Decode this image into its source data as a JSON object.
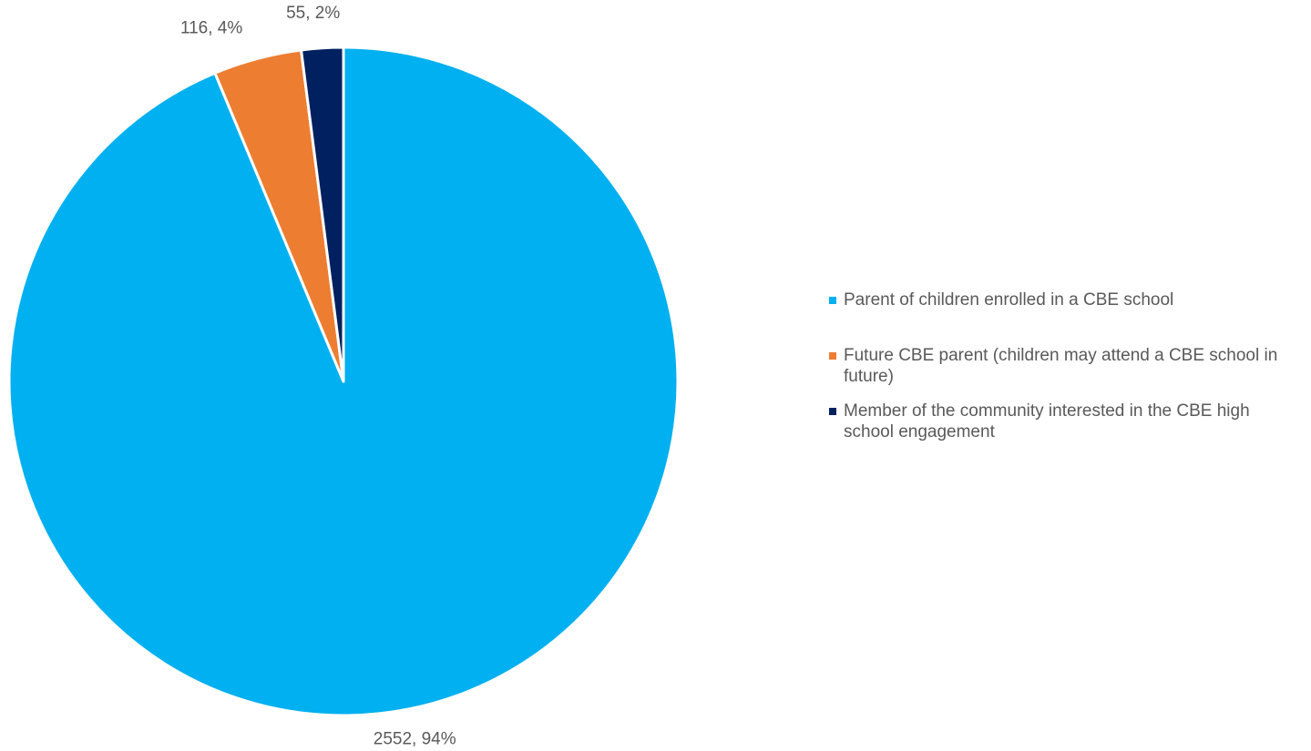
{
  "chart_data": {
    "type": "pie",
    "title": "",
    "slices": [
      {
        "label": "Parent of children enrolled in a CBE school",
        "value": 2552,
        "percent": 94,
        "data_label": "2552, 94%",
        "color": "#00B0F0"
      },
      {
        "label": "Future CBE parent (children may attend a CBE school in future)",
        "value": 116,
        "percent": 4,
        "data_label": "116, 4%",
        "color": "#ED7D31"
      },
      {
        "label": "Member of the community interested in the CBE high school engagement",
        "value": 55,
        "percent": 2,
        "data_label": "55, 2%",
        "color": "#002060"
      }
    ],
    "start_angle": "12 o'clock",
    "direction": "clockwise",
    "legend_position": "right"
  }
}
